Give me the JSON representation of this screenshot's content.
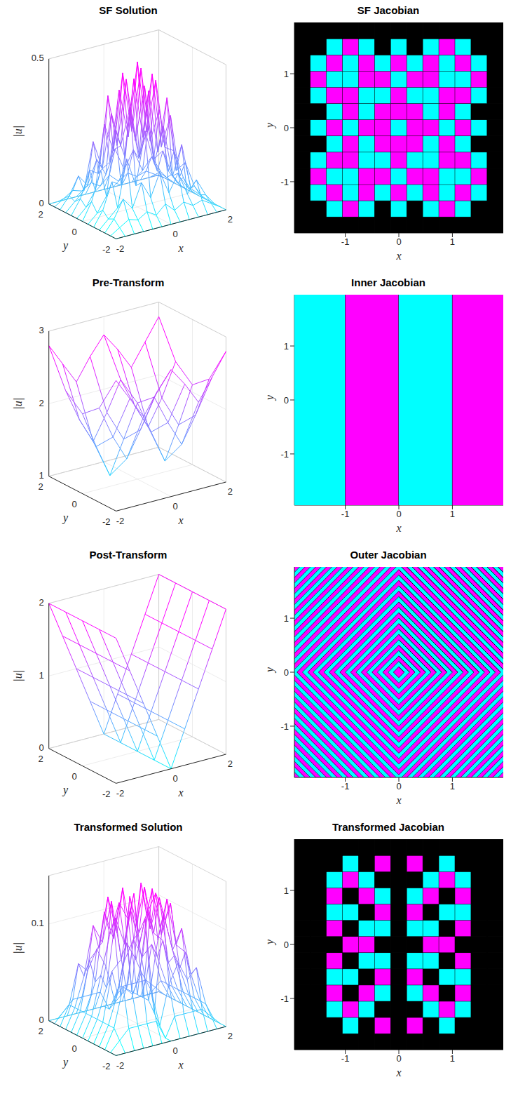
{
  "chart_data": [
    {
      "type": "surface",
      "title": "SF Solution",
      "xlabel": "x",
      "ylabel": "y",
      "zlabel": "|u|",
      "x": [
        -2,
        -1.667,
        -1.333,
        -1,
        -0.667,
        -0.333,
        0,
        0.333,
        0.667,
        1,
        1.333,
        1.667,
        2
      ],
      "y": [
        -2,
        -1.667,
        -1.333,
        -1,
        -0.667,
        -0.333,
        0,
        0.333,
        0.667,
        1,
        1.333,
        1.667,
        2
      ],
      "z": [
        [
          0,
          0,
          0,
          0,
          0,
          0,
          0,
          0,
          0,
          0,
          0,
          0,
          0
        ],
        [
          0,
          0.02,
          0.04,
          0.03,
          0.05,
          0.03,
          0.06,
          0.03,
          0.05,
          0.03,
          0.04,
          0.02,
          0
        ],
        [
          0,
          0.04,
          0.1,
          0.06,
          0.14,
          0.08,
          0.16,
          0.08,
          0.14,
          0.06,
          0.1,
          0.04,
          0
        ],
        [
          0,
          0.03,
          0.06,
          0.22,
          0.12,
          0.3,
          0.18,
          0.3,
          0.12,
          0.22,
          0.06,
          0.03,
          0
        ],
        [
          0,
          0.05,
          0.14,
          0.12,
          0.38,
          0.2,
          0.42,
          0.2,
          0.38,
          0.12,
          0.14,
          0.05,
          0
        ],
        [
          0,
          0.03,
          0.08,
          0.3,
          0.2,
          0.46,
          0.25,
          0.46,
          0.2,
          0.3,
          0.08,
          0.03,
          0
        ],
        [
          0,
          0.06,
          0.16,
          0.18,
          0.42,
          0.25,
          0.5,
          0.25,
          0.42,
          0.18,
          0.16,
          0.06,
          0
        ],
        [
          0,
          0.03,
          0.08,
          0.3,
          0.2,
          0.46,
          0.25,
          0.46,
          0.2,
          0.3,
          0.08,
          0.03,
          0
        ],
        [
          0,
          0.05,
          0.14,
          0.12,
          0.38,
          0.2,
          0.42,
          0.2,
          0.38,
          0.12,
          0.14,
          0.05,
          0
        ],
        [
          0,
          0.03,
          0.06,
          0.22,
          0.12,
          0.3,
          0.18,
          0.3,
          0.12,
          0.22,
          0.06,
          0.03,
          0
        ],
        [
          0,
          0.04,
          0.1,
          0.06,
          0.14,
          0.08,
          0.16,
          0.08,
          0.14,
          0.06,
          0.1,
          0.04,
          0
        ],
        [
          0,
          0.02,
          0.04,
          0.03,
          0.05,
          0.03,
          0.06,
          0.03,
          0.05,
          0.03,
          0.04,
          0.02,
          0
        ],
        [
          0,
          0,
          0,
          0,
          0,
          0,
          0,
          0,
          0,
          0,
          0,
          0,
          0
        ]
      ],
      "xlim": [
        -2,
        2
      ],
      "ylim": [
        -2,
        2
      ],
      "zlim": [
        0,
        0.5
      ],
      "xticks": [
        -2,
        0,
        2
      ],
      "yticks": [
        -2,
        0,
        2
      ],
      "zticks": [
        0,
        0.5
      ]
    },
    {
      "type": "heatmap",
      "title": "SF Jacobian",
      "xlabel": "x",
      "ylabel": "y",
      "x_edges": [
        -1.95,
        -1.65,
        -1.35,
        -1.05,
        -0.75,
        -0.45,
        -0.15,
        0.15,
        0.45,
        0.75,
        1.05,
        1.35,
        1.65,
        1.95
      ],
      "y_edges": [
        -1.95,
        -1.65,
        -1.35,
        -1.05,
        -0.75,
        -0.45,
        -0.15,
        0.15,
        0.45,
        0.75,
        1.05,
        1.35,
        1.65,
        1.95
      ],
      "cells": [
        [
          0,
          0,
          0,
          0,
          0,
          0,
          0,
          0,
          0,
          0,
          0,
          0,
          0
        ],
        [
          0,
          0,
          1,
          -1,
          1,
          0,
          1,
          0,
          1,
          -1,
          1,
          0,
          0
        ],
        [
          0,
          1,
          -1,
          1,
          -1,
          1,
          -1,
          1,
          -1,
          1,
          -1,
          1,
          0
        ],
        [
          0,
          -1,
          1,
          1,
          -1,
          -1,
          1,
          -1,
          -1,
          1,
          1,
          -1,
          0
        ],
        [
          0,
          1,
          -1,
          -1,
          1,
          1,
          -1,
          1,
          1,
          -1,
          -1,
          1,
          0
        ],
        [
          0,
          0,
          1,
          -1,
          1,
          -1,
          -1,
          -1,
          1,
          -1,
          1,
          0,
          0
        ],
        [
          0,
          1,
          -1,
          1,
          -1,
          -1,
          1,
          -1,
          -1,
          1,
          -1,
          1,
          0
        ],
        [
          0,
          0,
          1,
          -1,
          1,
          -1,
          -1,
          -1,
          1,
          -1,
          1,
          0,
          0
        ],
        [
          0,
          1,
          -1,
          -1,
          1,
          1,
          -1,
          1,
          1,
          -1,
          -1,
          1,
          0
        ],
        [
          0,
          -1,
          1,
          1,
          -1,
          -1,
          1,
          -1,
          -1,
          1,
          1,
          -1,
          0
        ],
        [
          0,
          1,
          -1,
          1,
          -1,
          1,
          -1,
          1,
          -1,
          1,
          -1,
          1,
          0
        ],
        [
          0,
          0,
          1,
          -1,
          1,
          0,
          1,
          0,
          1,
          -1,
          1,
          0,
          0
        ],
        [
          0,
          0,
          0,
          0,
          0,
          0,
          0,
          0,
          0,
          0,
          0,
          0,
          0
        ]
      ],
      "xlim": [
        -1.95,
        1.95
      ],
      "ylim": [
        -1.95,
        1.95
      ],
      "xticks": [
        -1,
        0,
        1
      ],
      "yticks": [
        -1,
        0,
        1
      ]
    },
    {
      "type": "surface",
      "title": "Pre-Transform",
      "xlabel": "x",
      "ylabel": "y",
      "zlabel": "|u|",
      "x": [
        -2,
        -1.5,
        -1,
        -0.5,
        0,
        0.5,
        1,
        1.5,
        2
      ],
      "y": [
        -2,
        -1,
        0,
        1,
        2
      ],
      "z": [
        [
          2.8,
          2.5,
          2.2,
          2.5,
          2.75,
          2.5,
          2.2,
          2.5,
          2.8
        ],
        [
          2.3,
          1.85,
          1.5,
          1.85,
          2.25,
          1.85,
          1.5,
          1.85,
          2.3
        ],
        [
          2.1,
          1.6,
          1.15,
          1.6,
          2.05,
          1.6,
          1.15,
          1.6,
          2.1
        ],
        [
          2.3,
          1.85,
          1.5,
          1.85,
          2.25,
          1.85,
          1.5,
          1.85,
          2.3
        ],
        [
          2.8,
          2.5,
          2.2,
          2.5,
          2.75,
          2.5,
          2.2,
          2.5,
          2.8
        ]
      ],
      "xlim": [
        -2,
        2
      ],
      "ylim": [
        -2,
        2
      ],
      "zlim": [
        1,
        3
      ],
      "xticks": [
        -2,
        0,
        2
      ],
      "yticks": [
        -2,
        0,
        2
      ],
      "zticks": [
        1,
        2,
        3
      ]
    },
    {
      "type": "heatmap",
      "title": "Inner Jacobian",
      "xlabel": "x",
      "ylabel": "y",
      "x_edges": [
        -1.95,
        -1,
        0,
        1,
        1.95
      ],
      "y_edges": [
        -1.95,
        1.95
      ],
      "cells": [
        [
          1,
          -1,
          1,
          -1
        ]
      ],
      "xlim": [
        -1.95,
        1.95
      ],
      "ylim": [
        -1.95,
        1.95
      ],
      "xticks": [
        -1,
        0,
        1
      ],
      "yticks": [
        -1,
        0,
        1
      ]
    },
    {
      "type": "surface",
      "title": "Post-Transform",
      "xlabel": "x",
      "ylabel": "y",
      "zlabel": "|u|",
      "x": [
        -2,
        -1.5,
        -1,
        -0.5,
        0,
        0.5,
        1,
        1.5,
        2
      ],
      "y": [
        -2,
        -1,
        0,
        1,
        2
      ],
      "z": [
        [
          2,
          1.5,
          1,
          0.5,
          0,
          0.5,
          1,
          1.5,
          2
        ],
        [
          2,
          1.5,
          1,
          0.5,
          0,
          0.5,
          1,
          1.5,
          2
        ],
        [
          2,
          1.5,
          1,
          0.5,
          0,
          0.5,
          1,
          1.5,
          2
        ],
        [
          2,
          1.5,
          1,
          0.5,
          0,
          0.5,
          1,
          1.5,
          2
        ],
        [
          2,
          1.5,
          1,
          0.5,
          0,
          0.5,
          1,
          1.5,
          2
        ]
      ],
      "xlim": [
        -2,
        2
      ],
      "ylim": [
        -2,
        2
      ],
      "zlim": [
        0,
        2
      ],
      "xticks": [
        -2,
        0,
        2
      ],
      "yticks": [
        -2,
        0,
        2
      ],
      "zticks": [
        0,
        1,
        2
      ]
    },
    {
      "type": "bands",
      "title": "Outer Jacobian",
      "xlabel": "x",
      "ylabel": "y",
      "band_edges": [
        0,
        0.1,
        0.2,
        0.3,
        0.4,
        0.5,
        0.6,
        0.7,
        0.8,
        0.9,
        1,
        1.1,
        1.2,
        1.3,
        1.4,
        1.5,
        1.6,
        1.7,
        1.8,
        1.9,
        2,
        2.1,
        2.2,
        2.3,
        2.4,
        2.5,
        2.6,
        2.7,
        2.8,
        2.9,
        3,
        3.1,
        3.2,
        3.3,
        3.4,
        3.5,
        3.6,
        3.7,
        3.8,
        3.9
      ],
      "signs": [
        -1,
        1,
        -1,
        1,
        -1,
        1,
        -1,
        1,
        -1,
        1,
        -1,
        1,
        -1,
        1,
        -1,
        1,
        -1,
        1,
        -1,
        1,
        -1,
        1,
        -1,
        1,
        -1,
        1,
        -1,
        1,
        -1,
        1,
        -1,
        1,
        -1,
        1,
        -1,
        1,
        -1,
        1,
        -1
      ],
      "xlim": [
        -1.95,
        1.95
      ],
      "ylim": [
        -1.95,
        1.95
      ],
      "xticks": [
        -1,
        0,
        1
      ],
      "yticks": [
        -1,
        0,
        1
      ]
    },
    {
      "type": "surface",
      "title": "Transformed Solution",
      "xlabel": "x",
      "ylabel": "y",
      "zlabel": "|u|",
      "x": [
        -2,
        -1.667,
        -1.333,
        -1,
        -0.667,
        -0.333,
        0,
        0.333,
        0.667,
        1,
        1.333,
        1.667,
        2
      ],
      "y": [
        -2,
        -1.667,
        -1.333,
        -1,
        -0.667,
        -0.333,
        0,
        0.333,
        0.667,
        1,
        1.333,
        1.667,
        2
      ],
      "z": [
        [
          0,
          0,
          0,
          0,
          0,
          0,
          0,
          0,
          0,
          0,
          0,
          0,
          0
        ],
        [
          0,
          0.01,
          0.02,
          0.02,
          0.02,
          0.02,
          0,
          0.02,
          0.02,
          0.02,
          0.02,
          0.01,
          0
        ],
        [
          0,
          0.02,
          0.06,
          0.05,
          0.07,
          0.05,
          0.01,
          0.05,
          0.07,
          0.05,
          0.06,
          0.02,
          0
        ],
        [
          0,
          0.02,
          0.05,
          0.1,
          0.08,
          0.12,
          0.02,
          0.12,
          0.08,
          0.1,
          0.05,
          0.02,
          0
        ],
        [
          0,
          0.02,
          0.07,
          0.08,
          0.13,
          0.09,
          0.03,
          0.09,
          0.13,
          0.08,
          0.07,
          0.02,
          0
        ],
        [
          0,
          0.02,
          0.05,
          0.12,
          0.09,
          0.14,
          0.03,
          0.14,
          0.09,
          0.12,
          0.05,
          0.02,
          0
        ],
        [
          0,
          0.02,
          0.06,
          0.1,
          0.13,
          0.11,
          0.03,
          0.11,
          0.13,
          0.1,
          0.06,
          0.02,
          0
        ],
        [
          0,
          0.02,
          0.05,
          0.12,
          0.09,
          0.14,
          0.03,
          0.14,
          0.09,
          0.12,
          0.05,
          0.02,
          0
        ],
        [
          0,
          0.02,
          0.07,
          0.08,
          0.13,
          0.09,
          0.03,
          0.09,
          0.13,
          0.08,
          0.07,
          0.02,
          0
        ],
        [
          0,
          0.02,
          0.05,
          0.1,
          0.08,
          0.12,
          0.02,
          0.12,
          0.08,
          0.1,
          0.05,
          0.02,
          0
        ],
        [
          0,
          0.02,
          0.06,
          0.05,
          0.07,
          0.05,
          0.01,
          0.05,
          0.07,
          0.05,
          0.06,
          0.02,
          0
        ],
        [
          0,
          0.01,
          0.02,
          0.02,
          0.02,
          0.02,
          0,
          0.02,
          0.02,
          0.02,
          0.02,
          0.01,
          0
        ],
        [
          0,
          0,
          0,
          0,
          0,
          0,
          0,
          0,
          0,
          0,
          0,
          0,
          0
        ]
      ],
      "xlim": [
        -2,
        2
      ],
      "ylim": [
        -2,
        2
      ],
      "zlim": [
        0,
        0.15
      ],
      "xticks": [
        -2,
        0,
        2
      ],
      "yticks": [
        -2,
        0,
        2
      ],
      "zticks": [
        0,
        0.1
      ]
    },
    {
      "type": "heatmap",
      "title": "Transformed Jacobian",
      "xlabel": "x",
      "ylabel": "y",
      "x_edges": [
        -1.95,
        -1.65,
        -1.35,
        -1.05,
        -0.75,
        -0.45,
        -0.15,
        0.15,
        0.45,
        0.75,
        1.05,
        1.35,
        1.65,
        1.95
      ],
      "y_edges": [
        -1.95,
        -1.65,
        -1.35,
        -1.05,
        -0.75,
        -0.45,
        -0.15,
        0.15,
        0.45,
        0.75,
        1.05,
        1.35,
        1.65,
        1.95
      ],
      "cells": [
        [
          0,
          0,
          0,
          0,
          0,
          0,
          0,
          0,
          0,
          0,
          0,
          0,
          0
        ],
        [
          0,
          0,
          0,
          1,
          0,
          -1,
          0,
          -1,
          0,
          1,
          0,
          0,
          0
        ],
        [
          0,
          0,
          1,
          -1,
          1,
          0,
          0,
          0,
          1,
          -1,
          1,
          0,
          0
        ],
        [
          0,
          0,
          -1,
          0,
          -1,
          1,
          0,
          1,
          -1,
          0,
          -1,
          0,
          0
        ],
        [
          0,
          0,
          1,
          1,
          0,
          -1,
          0,
          -1,
          0,
          1,
          1,
          0,
          0
        ],
        [
          0,
          0,
          -1,
          0,
          1,
          1,
          0,
          1,
          1,
          0,
          -1,
          0,
          0
        ],
        [
          0,
          0,
          0,
          -1,
          -1,
          0,
          0,
          0,
          -1,
          -1,
          0,
          0,
          0
        ],
        [
          0,
          0,
          -1,
          0,
          1,
          1,
          0,
          1,
          1,
          0,
          -1,
          0,
          0
        ],
        [
          0,
          0,
          1,
          1,
          0,
          -1,
          0,
          -1,
          0,
          1,
          1,
          0,
          0
        ],
        [
          0,
          0,
          -1,
          0,
          -1,
          1,
          0,
          1,
          -1,
          0,
          -1,
          0,
          0
        ],
        [
          0,
          0,
          1,
          -1,
          1,
          0,
          0,
          0,
          1,
          -1,
          1,
          0,
          0
        ],
        [
          0,
          0,
          0,
          1,
          0,
          -1,
          0,
          -1,
          0,
          1,
          0,
          0,
          0
        ],
        [
          0,
          0,
          0,
          0,
          0,
          0,
          0,
          0,
          0,
          0,
          0,
          0,
          0
        ]
      ],
      "xlim": [
        -1.95,
        1.95
      ],
      "ylim": [
        -1.95,
        1.95
      ],
      "xticks": [
        -1,
        0,
        1
      ],
      "yticks": [
        -1,
        0,
        1
      ]
    }
  ]
}
